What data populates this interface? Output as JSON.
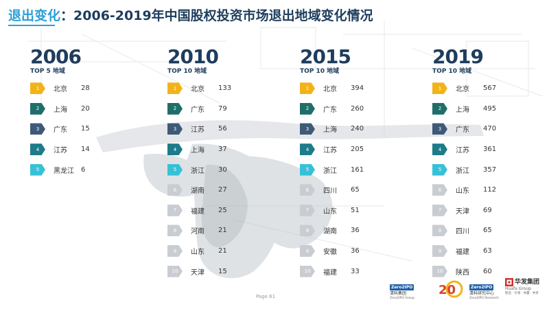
{
  "title": {
    "emphasis": "退出变化",
    "separator": "：",
    "main": "2006-2019年中国股权投资市场退出地域变化情况"
  },
  "columns": [
    {
      "year": "2006",
      "subtitle": "TOP 5 地域",
      "rows": [
        {
          "rank": "1",
          "region": "北京",
          "value": "28"
        },
        {
          "rank": "2",
          "region": "上海",
          "value": "20"
        },
        {
          "rank": "3",
          "region": "广东",
          "value": "15"
        },
        {
          "rank": "4",
          "region": "江苏",
          "value": "14"
        },
        {
          "rank": "5",
          "region": "黑龙江",
          "value": "6"
        }
      ]
    },
    {
      "year": "2010",
      "subtitle": "TOP 10 地域",
      "rows": [
        {
          "rank": "1",
          "region": "北京",
          "value": "133"
        },
        {
          "rank": "2",
          "region": "广东",
          "value": "79"
        },
        {
          "rank": "3",
          "region": "江苏",
          "value": "56"
        },
        {
          "rank": "4",
          "region": "上海",
          "value": "37"
        },
        {
          "rank": "5",
          "region": "浙江",
          "value": "30"
        },
        {
          "rank": "6",
          "region": "湖南",
          "value": "27"
        },
        {
          "rank": "7",
          "region": "福建",
          "value": "25"
        },
        {
          "rank": "8",
          "region": "河南",
          "value": "21"
        },
        {
          "rank": "9",
          "region": "山东",
          "value": "21"
        },
        {
          "rank": "10",
          "region": "天津",
          "value": "15"
        }
      ]
    },
    {
      "year": "2015",
      "subtitle": "TOP 10 地域",
      "rows": [
        {
          "rank": "1",
          "region": "北京",
          "value": "394"
        },
        {
          "rank": "2",
          "region": "广东",
          "value": "260"
        },
        {
          "rank": "3",
          "region": "上海",
          "value": "240"
        },
        {
          "rank": "4",
          "region": "江苏",
          "value": "205"
        },
        {
          "rank": "5",
          "region": "浙江",
          "value": "161"
        },
        {
          "rank": "6",
          "region": "四川",
          "value": "65"
        },
        {
          "rank": "7",
          "region": "山东",
          "value": "51"
        },
        {
          "rank": "8",
          "region": "湖南",
          "value": "36"
        },
        {
          "rank": "9",
          "region": "安徽",
          "value": "36"
        },
        {
          "rank": "10",
          "region": "福建",
          "value": "33"
        }
      ]
    },
    {
      "year": "2019",
      "subtitle": "TOP 10 地域",
      "rows": [
        {
          "rank": "1",
          "region": "北京",
          "value": "567"
        },
        {
          "rank": "2",
          "region": "上海",
          "value": "495"
        },
        {
          "rank": "3",
          "region": "广东",
          "value": "470"
        },
        {
          "rank": "4",
          "region": "江苏",
          "value": "361"
        },
        {
          "rank": "5",
          "region": "浙江",
          "value": "357"
        },
        {
          "rank": "6",
          "region": "山东",
          "value": "112"
        },
        {
          "rank": "7",
          "region": "天津",
          "value": "69"
        },
        {
          "rank": "8",
          "region": "四川",
          "value": "65"
        },
        {
          "rank": "9",
          "region": "福建",
          "value": "63"
        },
        {
          "rank": "10",
          "region": "陕西",
          "value": "60"
        }
      ]
    }
  ],
  "footer": {
    "page_label": "Page 61"
  },
  "logos": {
    "zero2ipo": {
      "mark": "Zero2IPO",
      "name": "清科集团",
      "en": "Zero2IPO Group"
    },
    "anniversary": {
      "mark": "20"
    },
    "research": {
      "mark": "Zero2IPO",
      "name": "清科研究中心",
      "en": "Zero2IPO Research"
    },
    "huafa": {
      "name": "华发集团",
      "en": "Huafa Group",
      "tagline": "智造 · 引领 · 共赢 · 共享"
    }
  },
  "colors": {
    "title_dark": "#1e3d5c",
    "title_accent": "#2a9fd6",
    "rank1": "#f2b31a",
    "rank2": "#1f6e6a",
    "rank3": "#3f5a78",
    "rank4": "#1d7b8a",
    "rank5": "#37c1d8",
    "rank_other": "#c9cdd2"
  }
}
